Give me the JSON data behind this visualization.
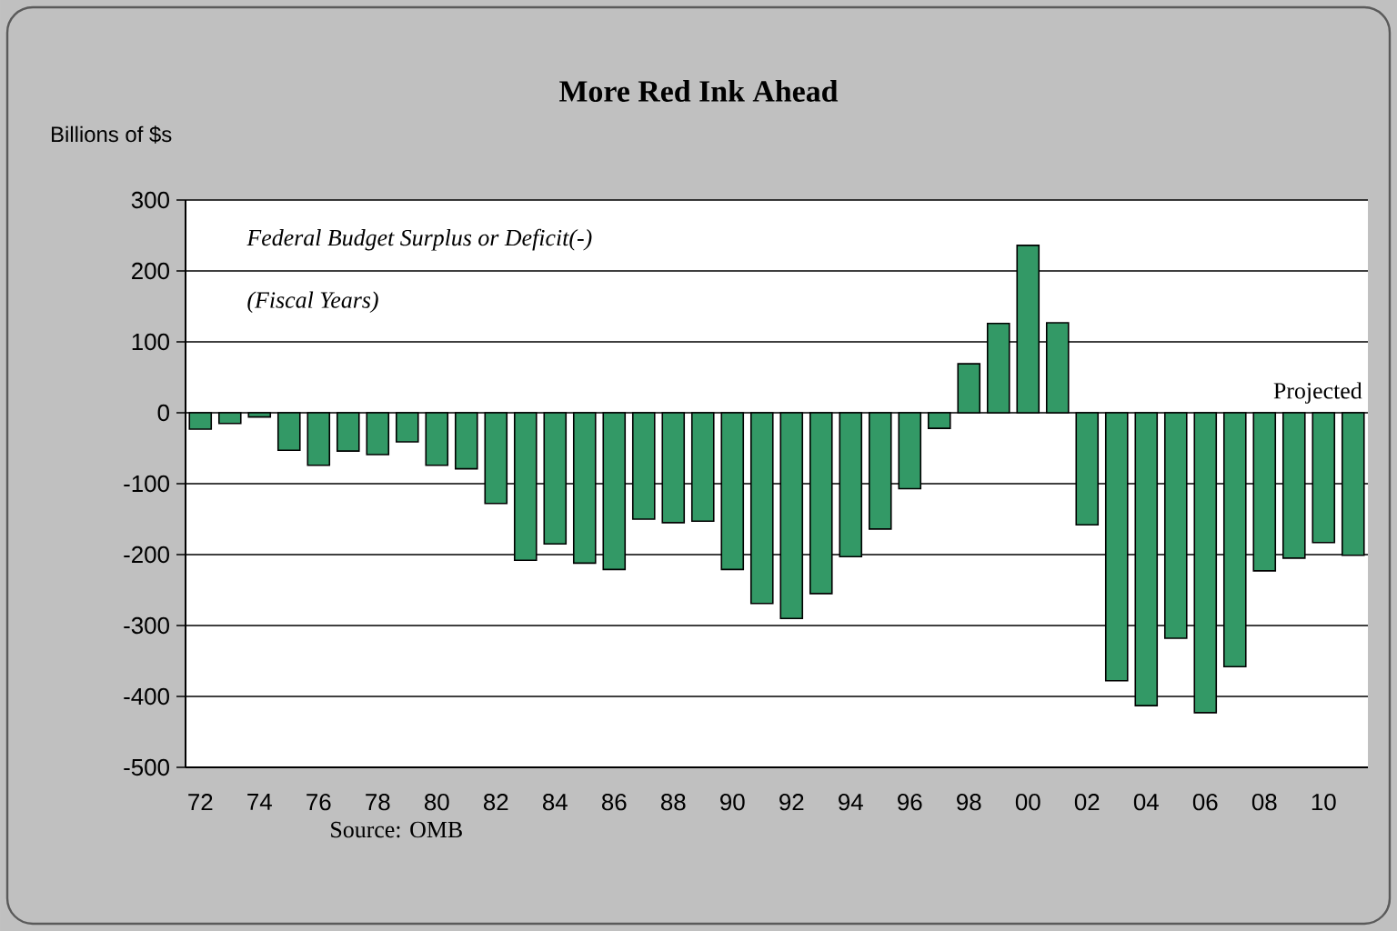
{
  "chart_data": {
    "type": "bar",
    "title": "More Red Ink Ahead",
    "ylabel": "Billions of $s",
    "categories": [
      "72",
      null,
      "74",
      null,
      "76",
      null,
      "78",
      null,
      "80",
      null,
      "82",
      null,
      "84",
      null,
      "86",
      null,
      "88",
      null,
      "90",
      null,
      "92",
      null,
      "94",
      null,
      "96",
      null,
      "98",
      null,
      "00",
      null,
      "02",
      null,
      "04",
      null,
      "06",
      null,
      "08",
      null,
      "10",
      null
    ],
    "values": [
      -23,
      -15,
      -6,
      -53,
      -74,
      -54,
      -59,
      -41,
      -74,
      -79,
      -128,
      -208,
      -185,
      -212,
      -221,
      -150,
      -155,
      -153,
      -221,
      -269,
      -290,
      -255,
      -203,
      -164,
      -107,
      -22,
      69,
      126,
      236,
      127,
      -158,
      -378,
      -413,
      -318,
      -423,
      -358,
      -223,
      -205,
      -183,
      -201
    ],
    "color": "#339966",
    "ylim": [
      -500,
      300
    ],
    "yticks": [
      -500,
      -400,
      -300,
      -200,
      -100,
      0,
      100,
      200,
      300
    ],
    "grid": "y",
    "annotations": [
      "*Federal Budget Surplus or Deficit(-)*",
      "*(Fiscal Years)*",
      "Projected",
      "Source: OMB"
    ]
  }
}
